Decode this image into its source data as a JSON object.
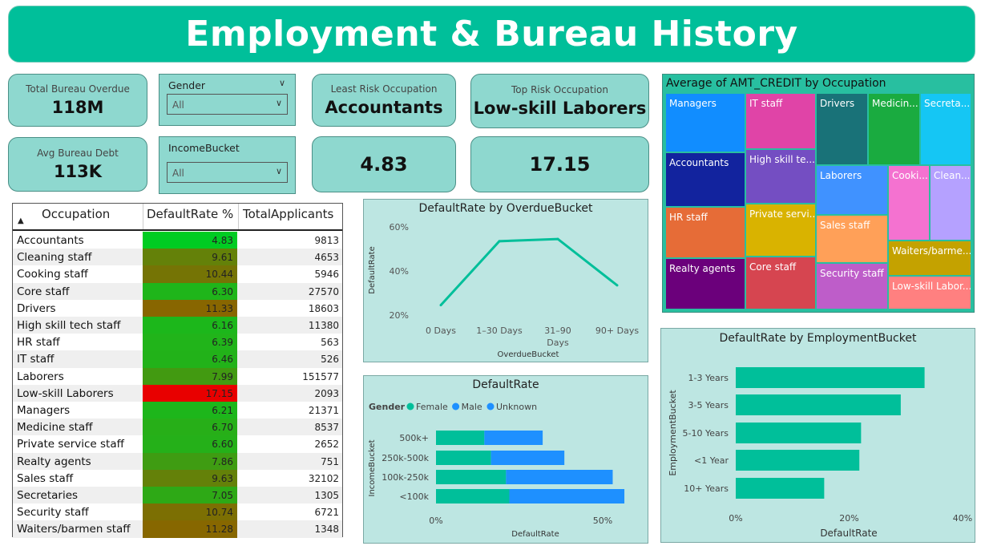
{
  "header": {
    "title": "Employment & Bureau History"
  },
  "cards": {
    "total_overdue": {
      "label": "Total Bureau Overdue",
      "value": "118M"
    },
    "avg_debt": {
      "label": "Avg Bureau Debt",
      "value": "113K"
    },
    "least_risk": {
      "label": "Least Risk Occupation",
      "value": "Accountants"
    },
    "least_risk_rate": {
      "value": "4.83"
    },
    "top_risk": {
      "label": "Top Risk Occupation",
      "value": "Low-skill Laborers"
    },
    "top_risk_rate": {
      "value": "17.15"
    }
  },
  "slicers": {
    "gender": {
      "label": "Gender",
      "value": "All"
    },
    "income": {
      "label": "IncomeBucket",
      "value": "All"
    }
  },
  "table": {
    "headers": [
      "Occupation",
      "DefaultRate %",
      "TotalApplicants"
    ],
    "rows": [
      {
        "occupation": "Accountants",
        "rate": "4.83",
        "rate_num": 4.83,
        "applicants": "9813"
      },
      {
        "occupation": "Cleaning staff",
        "rate": "9.61",
        "rate_num": 9.61,
        "applicants": "4653"
      },
      {
        "occupation": "Cooking staff",
        "rate": "10.44",
        "rate_num": 10.44,
        "applicants": "5946"
      },
      {
        "occupation": "Core staff",
        "rate": "6.30",
        "rate_num": 6.3,
        "applicants": "27570"
      },
      {
        "occupation": "Drivers",
        "rate": "11.33",
        "rate_num": 11.33,
        "applicants": "18603"
      },
      {
        "occupation": "High skill tech staff",
        "rate": "6.16",
        "rate_num": 6.16,
        "applicants": "11380"
      },
      {
        "occupation": "HR staff",
        "rate": "6.39",
        "rate_num": 6.39,
        "applicants": "563"
      },
      {
        "occupation": "IT staff",
        "rate": "6.46",
        "rate_num": 6.46,
        "applicants": "526"
      },
      {
        "occupation": "Laborers",
        "rate": "7.99",
        "rate_num": 7.99,
        "applicants": "151577"
      },
      {
        "occupation": "Low-skill Laborers",
        "rate": "17.15",
        "rate_num": 17.15,
        "applicants": "2093"
      },
      {
        "occupation": "Managers",
        "rate": "6.21",
        "rate_num": 6.21,
        "applicants": "21371"
      },
      {
        "occupation": "Medicine staff",
        "rate": "6.70",
        "rate_num": 6.7,
        "applicants": "8537"
      },
      {
        "occupation": "Private service staff",
        "rate": "6.60",
        "rate_num": 6.6,
        "applicants": "2652"
      },
      {
        "occupation": "Realty agents",
        "rate": "7.86",
        "rate_num": 7.86,
        "applicants": "751"
      },
      {
        "occupation": "Sales staff",
        "rate": "9.63",
        "rate_num": 9.63,
        "applicants": "32102"
      },
      {
        "occupation": "Secretaries",
        "rate": "7.05",
        "rate_num": 7.05,
        "applicants": "1305"
      },
      {
        "occupation": "Security staff",
        "rate": "10.74",
        "rate_num": 10.74,
        "applicants": "6721"
      },
      {
        "occupation": "Waiters/barmen staff",
        "rate": "11.28",
        "rate_num": 11.28,
        "applicants": "1348"
      }
    ]
  },
  "colors": {
    "accent": "#00BF9A",
    "card": "#8ED8CF",
    "panel": "#BDE6E2",
    "rate_low": "#00CC22",
    "rate_mid": "#888800",
    "rate_high": "#E80000",
    "female": "#00BF9A",
    "male": "#1E90FF"
  },
  "chart_data": [
    {
      "type": "line",
      "title": "DefaultRate by OverdueBucket",
      "xlabel": "OverdueBucket",
      "ylabel": "DefaultRate",
      "categories": [
        "0 Days",
        "1–30 Days",
        "31–90 Days",
        "90+ Days"
      ],
      "values": [
        0.245,
        0.535,
        0.545,
        0.335
      ],
      "yticks": [
        "20%",
        "40%",
        "60%"
      ],
      "ylim": [
        0.2,
        0.6
      ]
    },
    {
      "type": "bar",
      "orientation": "horizontal",
      "stacked": true,
      "title": "DefaultRate",
      "legend_title": "Gender",
      "legend": [
        "Female",
        "Male",
        "Unknown"
      ],
      "xlabel": "DefaultRate",
      "ylabel": "IncomeBucket",
      "categories": [
        "500k+",
        "250k-500k",
        "100k-250k",
        "<100k"
      ],
      "series": [
        {
          "name": "Female",
          "values": [
            0.145,
            0.165,
            0.21,
            0.22
          ]
        },
        {
          "name": "Male",
          "values": [
            0.175,
            0.22,
            0.32,
            0.345
          ]
        }
      ],
      "xticks": [
        "0%",
        "50%"
      ],
      "xlim": [
        0,
        0.566
      ]
    },
    {
      "type": "bar",
      "orientation": "horizontal",
      "title": "DefaultRate by EmploymentBucket",
      "xlabel": "DefaultRate",
      "ylabel": "EmploymentBucket",
      "categories": [
        "1-3 Years",
        "3-5 Years",
        "5-10 Years",
        "<1 Year",
        "10+ Years"
      ],
      "values": [
        0.333,
        0.291,
        0.221,
        0.218,
        0.156
      ],
      "xticks": [
        "0%",
        "20%",
        "40%"
      ],
      "xlim": [
        0,
        0.4
      ]
    },
    {
      "type": "treemap",
      "title": "Average of AMT_CREDIT by Occupation",
      "nodes": [
        {
          "name": "Managers",
          "color": "#118DFF"
        },
        {
          "name": "Accountants",
          "color": "#12239E"
        },
        {
          "name": "HR staff",
          "color": "#E66C37"
        },
        {
          "name": "Realty agents",
          "color": "#6B007B"
        },
        {
          "name": "IT staff",
          "color": "#E044A7"
        },
        {
          "name": "High skill te...",
          "color": "#744EC2"
        },
        {
          "name": "Private servi...",
          "color": "#D9B300"
        },
        {
          "name": "Core staff",
          "color": "#D64550"
        },
        {
          "name": "Drivers",
          "color": "#197278"
        },
        {
          "name": "Medicin...",
          "color": "#1AAB40"
        },
        {
          "name": "Secreta...",
          "color": "#15C6F4"
        },
        {
          "name": "Laborers",
          "color": "#4092FF"
        },
        {
          "name": "Sales staff",
          "color": "#FFA058"
        },
        {
          "name": "Security staff",
          "color": "#BE5DC9"
        },
        {
          "name": "Cooki...",
          "color": "#F472D0"
        },
        {
          "name": "Clean...",
          "color": "#B5A1FF"
        },
        {
          "name": "Waiters/barme...",
          "color": "#C4A200"
        },
        {
          "name": "Low-skill Labor...",
          "color": "#FF8080"
        }
      ]
    }
  ]
}
